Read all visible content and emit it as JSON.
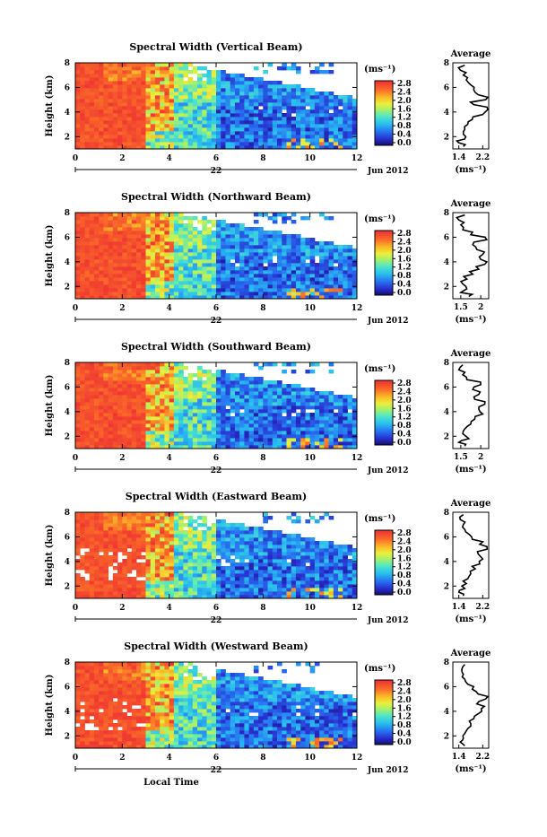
{
  "figure": {
    "x_axis_label": "Local Time",
    "date_label": "Jun 2012",
    "day_label": "22",
    "y_axis_label": "Height (km)",
    "unit_label": "(ms⁻¹)",
    "average_title": "Average"
  },
  "chart_data": [
    {
      "type": "heatmap",
      "title": "Spectral Width (Vertical Beam)",
      "xlabel": "",
      "ylabel": "Height (km)",
      "xlim": [
        0,
        12
      ],
      "ylim": [
        1,
        8
      ],
      "x_ticks": [
        0,
        2,
        4,
        6,
        8,
        10,
        12
      ],
      "y_ticks": [
        2,
        4,
        6,
        8
      ],
      "colorbar": {
        "label": "(ms⁻¹)",
        "range": [
          0,
          2.8
        ],
        "ticks": [
          "2.8",
          "2.4",
          "2.0",
          "1.6",
          "1.2",
          "0.8",
          "0.4",
          "0.0"
        ]
      },
      "average_profile": {
        "title": "Average",
        "xlim": [
          1.2,
          2.4
        ],
        "x_ticks": [
          1.4,
          2.2
        ],
        "xlabel": "(ms⁻¹)",
        "ylim": [
          1,
          8
        ],
        "y_ticks": [
          2,
          4,
          6,
          8
        ],
        "height_km": [
          1.2,
          1.5,
          1.8,
          2.2,
          2.6,
          3.0,
          3.4,
          3.8,
          4.2,
          4.6,
          5.0,
          5.4,
          5.8,
          6.2,
          6.6,
          7.0,
          7.4,
          7.8
        ],
        "width_ms": [
          1.55,
          1.4,
          1.6,
          1.55,
          1.6,
          1.7,
          1.85,
          2.2,
          2.4,
          1.9,
          2.3,
          2.05,
          1.9,
          1.8,
          1.65,
          1.55,
          1.45,
          1.6
        ]
      }
    },
    {
      "type": "heatmap",
      "title": "Spectral Width (Northward Beam)",
      "xlabel": "",
      "ylabel": "Height (km)",
      "xlim": [
        0,
        12
      ],
      "ylim": [
        1,
        8
      ],
      "x_ticks": [
        0,
        2,
        4,
        6,
        8,
        10,
        12
      ],
      "y_ticks": [
        2,
        4,
        6,
        8
      ],
      "colorbar": {
        "label": "(ms⁻¹)",
        "range": [
          0,
          2.8
        ],
        "ticks": [
          "2.8",
          "2.4",
          "2.0",
          "1.6",
          "1.2",
          "0.8",
          "0.4",
          "0.0"
        ]
      },
      "average_profile": {
        "title": "Average",
        "xlim": [
          1.3,
          2.2
        ],
        "x_ticks": [
          1.5,
          2.0
        ],
        "xlabel": "(ms⁻¹)",
        "ylim": [
          1,
          8
        ],
        "y_ticks": [
          2,
          4,
          6,
          8
        ],
        "height_km": [
          1.2,
          1.5,
          1.8,
          2.2,
          2.6,
          3.0,
          3.4,
          3.8,
          4.2,
          4.6,
          5.0,
          5.4,
          5.8,
          6.2,
          6.6,
          7.0,
          7.4,
          7.8
        ],
        "width_ms": [
          1.7,
          1.5,
          1.65,
          1.55,
          1.65,
          1.8,
          1.95,
          2.1,
          2.0,
          2.05,
          1.9,
          1.8,
          2.15,
          1.75,
          1.55,
          1.5,
          1.45,
          1.6
        ]
      }
    },
    {
      "type": "heatmap",
      "title": "Spectral Width (Southward Beam)",
      "xlabel": "",
      "ylabel": "Height (km)",
      "xlim": [
        0,
        12
      ],
      "ylim": [
        1,
        8
      ],
      "x_ticks": [
        0,
        2,
        4,
        6,
        8,
        10,
        12
      ],
      "y_ticks": [
        2,
        4,
        6,
        8
      ],
      "colorbar": {
        "label": "(ms⁻¹)",
        "range": [
          0,
          2.8
        ],
        "ticks": [
          "2.8",
          "2.4",
          "2.0",
          "1.6",
          "1.2",
          "0.8",
          "0.4",
          "0.0"
        ]
      },
      "average_profile": {
        "title": "Average",
        "xlim": [
          1.3,
          2.2
        ],
        "x_ticks": [
          1.5,
          2.0
        ],
        "xlabel": "(ms⁻¹)",
        "ylim": [
          1,
          8
        ],
        "y_ticks": [
          2,
          4,
          6,
          8
        ],
        "height_km": [
          1.2,
          1.5,
          1.8,
          2.2,
          2.6,
          3.0,
          3.4,
          3.8,
          4.2,
          4.6,
          5.0,
          5.4,
          5.8,
          6.2,
          6.6,
          7.0,
          7.4,
          7.8
        ],
        "width_ms": [
          1.6,
          1.45,
          1.7,
          1.55,
          1.6,
          1.75,
          1.85,
          2.05,
          1.95,
          2.1,
          1.85,
          1.95,
          1.8,
          2.0,
          1.65,
          1.55,
          1.45,
          1.55
        ]
      }
    },
    {
      "type": "heatmap",
      "title": "Spectral Width (Eastward Beam)",
      "xlabel": "",
      "ylabel": "Height (km)",
      "xlim": [
        0,
        12
      ],
      "ylim": [
        1,
        8
      ],
      "x_ticks": [
        0,
        2,
        4,
        6,
        8,
        10,
        12
      ],
      "y_ticks": [
        2,
        4,
        6,
        8
      ],
      "colorbar": {
        "label": "(ms⁻¹)",
        "range": [
          0,
          2.8
        ],
        "ticks": [
          "2.8",
          "2.4",
          "2.0",
          "1.6",
          "1.2",
          "0.8",
          "0.4",
          "0.0"
        ]
      },
      "average_profile": {
        "title": "Average",
        "xlim": [
          1.2,
          2.4
        ],
        "x_ticks": [
          1.4,
          2.2
        ],
        "xlabel": "(ms⁻¹)",
        "ylim": [
          1,
          8
        ],
        "y_ticks": [
          2,
          4,
          6,
          8
        ],
        "height_km": [
          1.2,
          1.5,
          1.8,
          2.2,
          2.6,
          3.0,
          3.4,
          3.8,
          4.2,
          4.6,
          5.0,
          5.4,
          5.8,
          6.2,
          6.6,
          7.0,
          7.4,
          7.8
        ],
        "width_ms": [
          1.55,
          1.4,
          1.6,
          1.65,
          1.7,
          1.8,
          1.95,
          2.1,
          2.2,
          2.05,
          2.35,
          2.1,
          1.85,
          1.75,
          1.6,
          1.55,
          1.45,
          1.55
        ]
      }
    },
    {
      "type": "heatmap",
      "title": "Spectral Width (Westward Beam)",
      "xlabel": "Local Time",
      "ylabel": "Height (km)",
      "xlim": [
        0,
        12
      ],
      "ylim": [
        1,
        8
      ],
      "x_ticks": [
        0,
        2,
        4,
        6,
        8,
        10,
        12
      ],
      "y_ticks": [
        2,
        4,
        6,
        8
      ],
      "colorbar": {
        "label": "(ms⁻¹)",
        "range": [
          0,
          2.8
        ],
        "ticks": [
          "2.8",
          "2.4",
          "2.0",
          "1.6",
          "1.2",
          "0.8",
          "0.4",
          "0.0"
        ]
      },
      "average_profile": {
        "title": "Average",
        "xlim": [
          1.2,
          2.4
        ],
        "x_ticks": [
          1.4,
          2.2
        ],
        "xlabel": "(ms⁻¹)",
        "ylim": [
          1,
          8
        ],
        "y_ticks": [
          2,
          4,
          6,
          8
        ],
        "height_km": [
          1.2,
          1.5,
          1.8,
          2.2,
          2.6,
          3.0,
          3.4,
          3.8,
          4.2,
          4.6,
          5.0,
          5.4,
          5.8,
          6.2,
          6.6,
          7.0,
          7.4,
          7.8
        ],
        "width_ms": [
          1.6,
          1.45,
          1.55,
          1.6,
          1.7,
          1.8,
          1.9,
          2.05,
          2.15,
          2.0,
          2.3,
          2.05,
          1.85,
          1.7,
          1.6,
          1.55,
          1.5,
          1.6
        ]
      }
    }
  ]
}
